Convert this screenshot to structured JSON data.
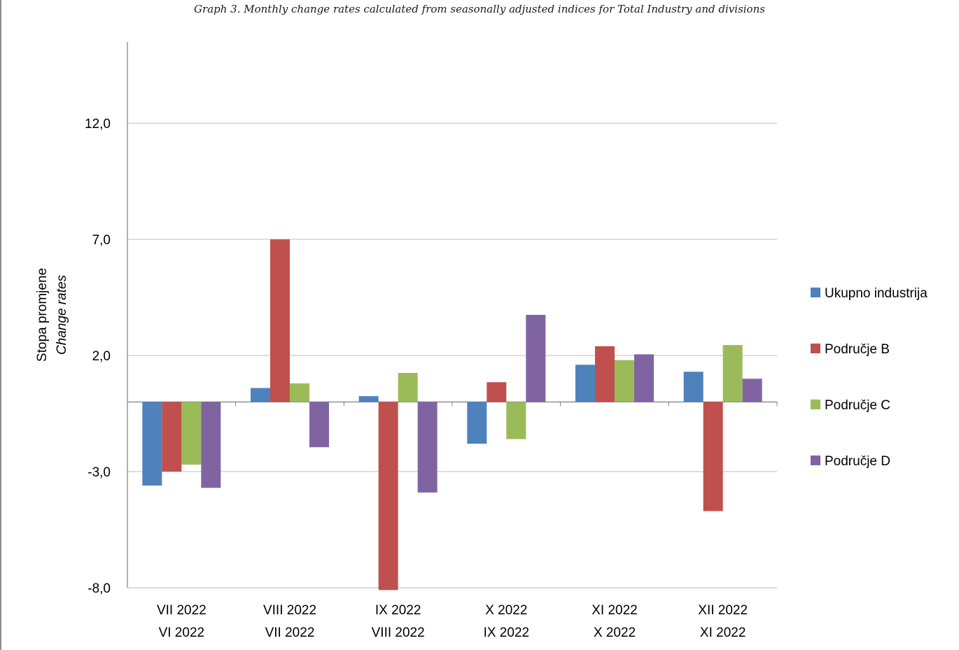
{
  "subtitle": "Graph 3. Monthly change rates calculated from seasonally adjusted indices for Total Industry and divisions",
  "chart_data": {
    "type": "bar",
    "ylabel": "Stopa promjene",
    "ylabel_en": "Change rates",
    "ylim": [
      -8.0,
      15.5
    ],
    "yticks": [
      -8.0,
      -3.0,
      2.0,
      7.0,
      12.0
    ],
    "ytick_labels": [
      "-8,0",
      "-3,0",
      "2,0",
      "7,0",
      "12,0"
    ],
    "grid": true,
    "legend_position": "right",
    "categories": [
      [
        "VII 2022",
        "VI 2022"
      ],
      [
        "VIII 2022",
        "VII 2022"
      ],
      [
        "IX 2022",
        "VIII 2022"
      ],
      [
        "X 2022",
        "IX 2022"
      ],
      [
        "XI 2022",
        "X 2022"
      ],
      [
        "XII 2022",
        "XI 2022"
      ]
    ],
    "series": [
      {
        "name": "Ukupno industrija",
        "color": "#4f81bd",
        "values": [
          -3.6,
          0.6,
          0.25,
          -1.8,
          1.6,
          1.3
        ]
      },
      {
        "name": "Područje B",
        "color": "#c0504d",
        "values": [
          -3.0,
          7.0,
          -8.1,
          0.85,
          2.4,
          -4.7
        ]
      },
      {
        "name": "Područje C",
        "color": "#9bbb59",
        "values": [
          -2.7,
          0.8,
          1.25,
          -1.6,
          1.8,
          2.45
        ]
      },
      {
        "name": "Područje D",
        "color": "#8064a2",
        "values": [
          -3.7,
          -1.95,
          -3.9,
          3.75,
          2.05,
          1.0
        ]
      }
    ]
  }
}
